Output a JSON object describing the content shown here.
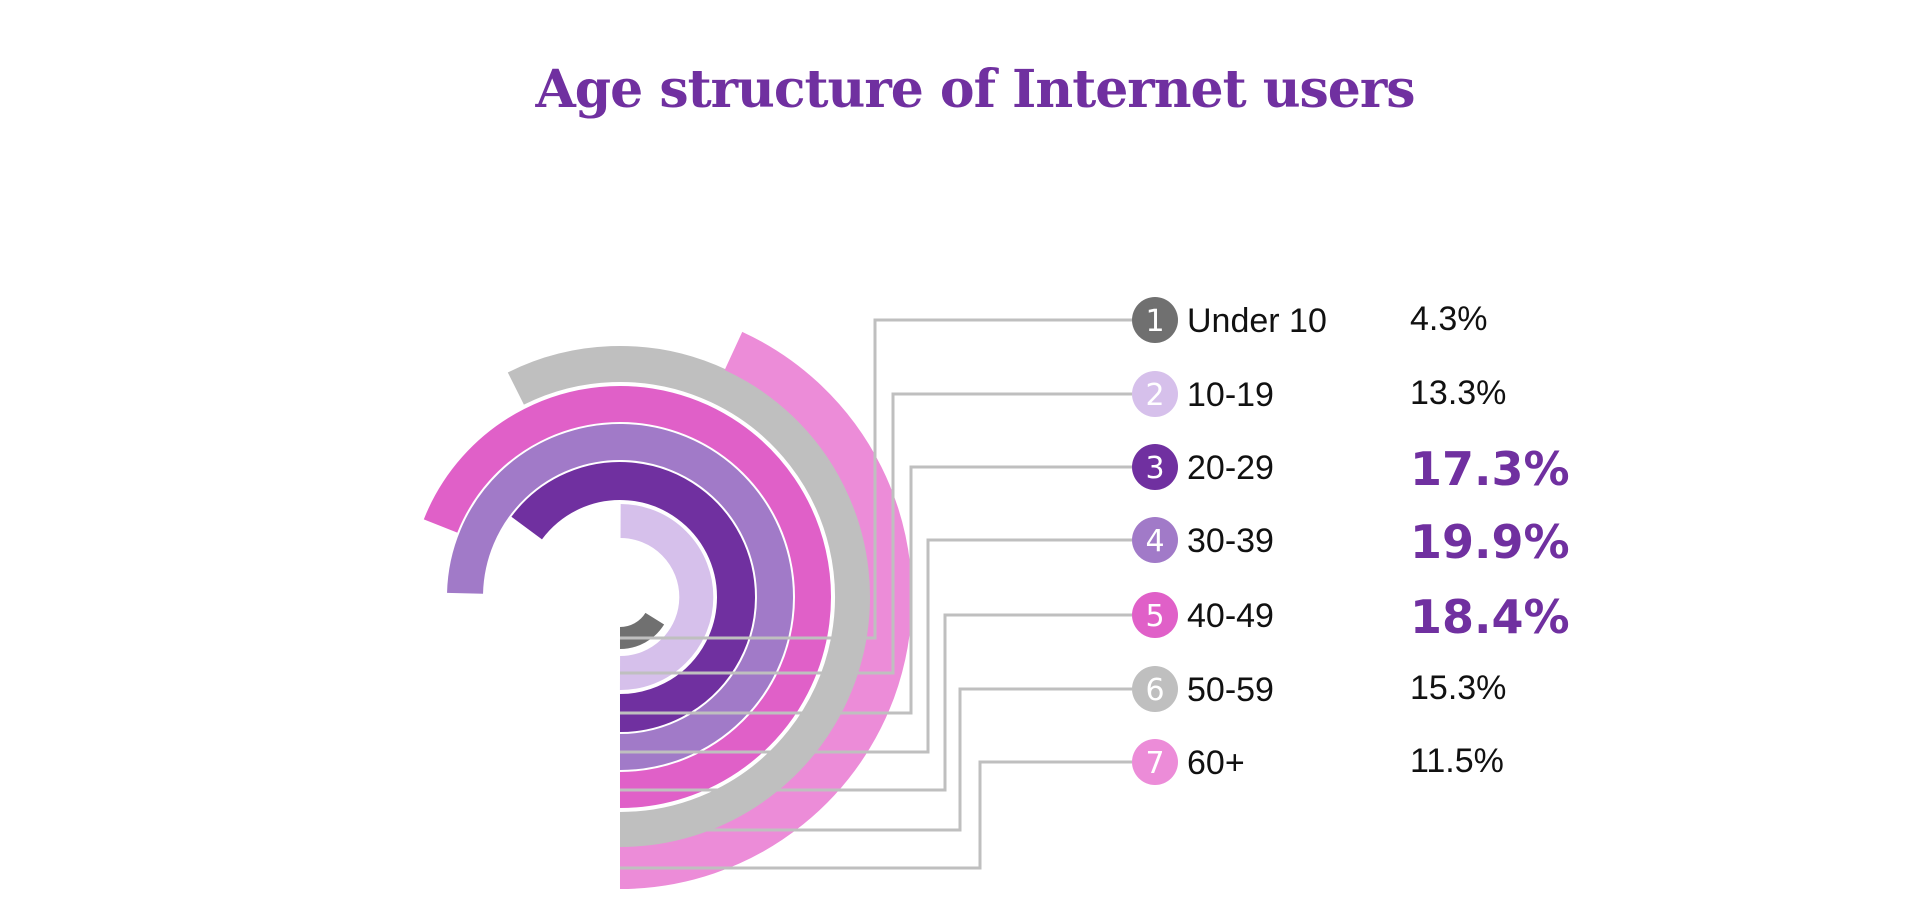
{
  "chart_data": {
    "type": "radial-bar",
    "title": "Age structure of Internet users",
    "categories": [
      "Under 10",
      "10-19",
      "20-29",
      "30-39",
      "40-49",
      "50-59",
      "60+"
    ],
    "indices": [
      "1",
      "2",
      "3",
      "4",
      "5",
      "6",
      "7"
    ],
    "values": [
      4.3,
      13.3,
      17.3,
      19.9,
      18.4,
      15.3,
      11.5
    ],
    "value_labels": [
      "4.3%",
      "13.3%",
      "17.3%",
      "19.9%",
      "18.4%",
      "15.3%",
      "11.5%"
    ],
    "highlighted": [
      false,
      false,
      true,
      true,
      true,
      false,
      false
    ],
    "colors": [
      "#707070",
      "#d6c0eb",
      "#7030a0",
      "#a17ac8",
      "#e060c8",
      "#bfbfbf",
      "#ec8cd8"
    ],
    "connector_color": "#bfbfbf",
    "title_color": "#7030a0",
    "highlight_color": "#7030a0",
    "text_color": "#111111"
  }
}
